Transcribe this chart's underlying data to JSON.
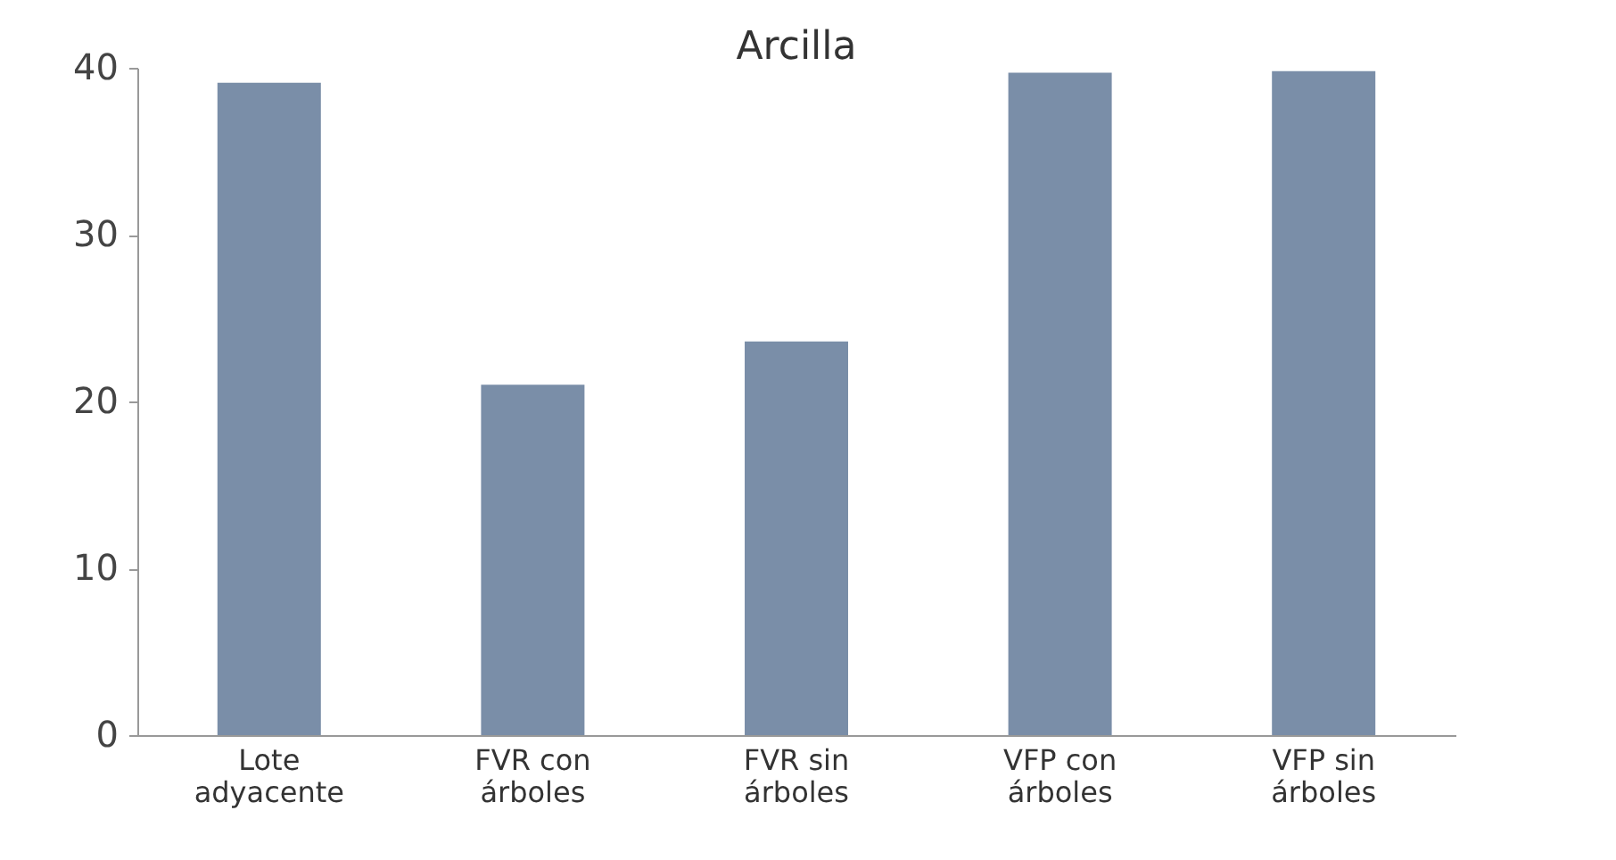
{
  "chart_data": {
    "type": "bar",
    "title": "Arcilla",
    "categories": [
      "Lote adyacente",
      "FVR con árboles",
      "FVR sin árboles",
      "VFP con árboles",
      "VFP sin árboles"
    ],
    "values": [
      39.1,
      21.0,
      23.6,
      39.7,
      39.8
    ],
    "color": "#7a8ea8",
    "ylim": [
      0,
      40
    ],
    "yticks": [
      0,
      10,
      20,
      30,
      40
    ],
    "grid": false
  }
}
